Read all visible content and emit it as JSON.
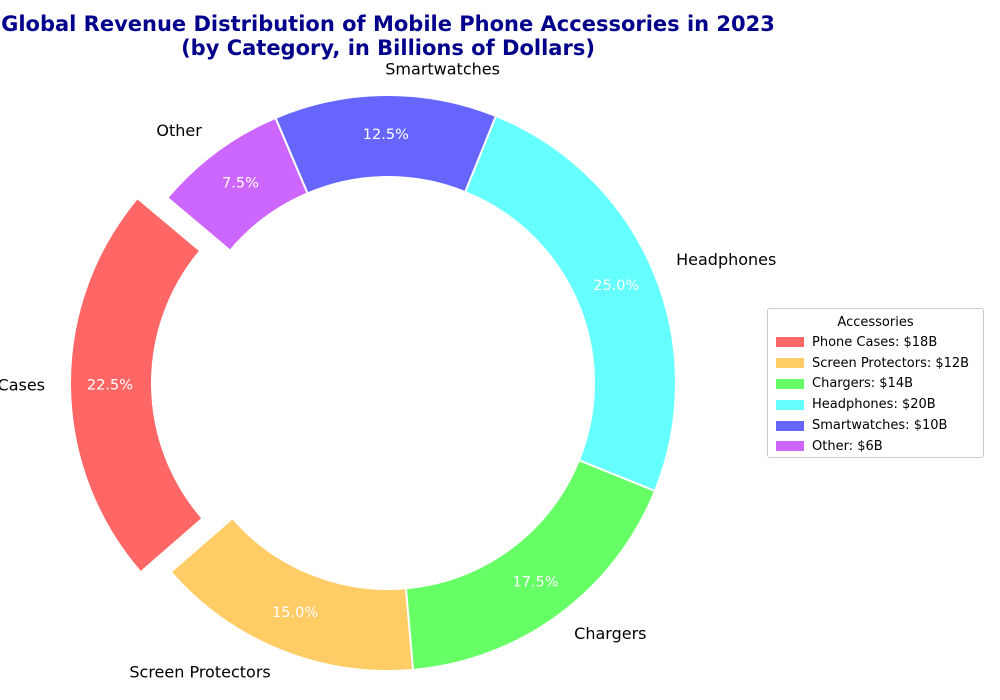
{
  "chart_data": {
    "type": "pie",
    "variant": "donut",
    "title": "Global Revenue Distribution of Mobile Phone Accessories in 2023",
    "subtitle": "(by Category, in Billions of Dollars)",
    "categories": [
      "Phone Cases",
      "Screen Protectors",
      "Chargers",
      "Headphones",
      "Smartwatches",
      "Other"
    ],
    "values": [
      18,
      12,
      14,
      20,
      10,
      6
    ],
    "percent_labels": [
      "22.5%",
      "15.0%",
      "17.5%",
      "25.0%",
      "12.5%",
      "7.5%"
    ],
    "colors": [
      "#ff6666",
      "#ffcc66",
      "#66ff66",
      "#66ffff",
      "#6666ff",
      "#cc66ff"
    ],
    "exploded": [
      true,
      false,
      false,
      false,
      false,
      false
    ],
    "start_angle_deg": 140,
    "legend": {
      "title": "Accessories",
      "placement": "right",
      "entries": [
        "Phone Cases: $18B",
        "Screen Protectors: $12B",
        "Chargers: $14B",
        "Headphones: $20B",
        "Smartwatches: $10B",
        "Other: $6B"
      ]
    }
  },
  "title_color": "#00008b"
}
